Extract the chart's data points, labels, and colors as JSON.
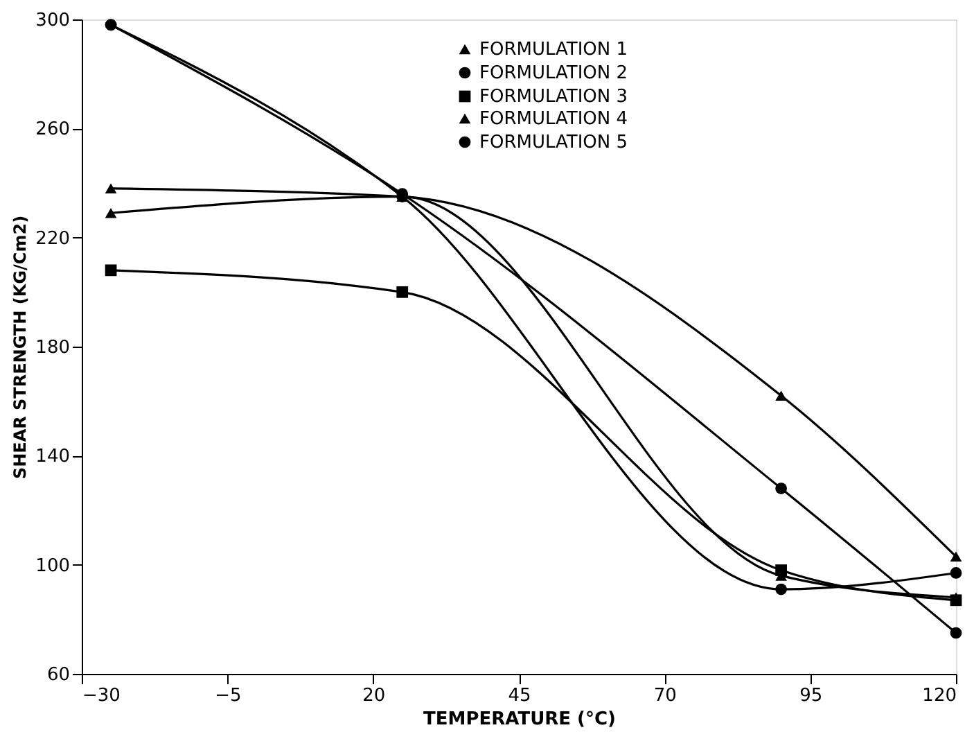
{
  "chart_data": {
    "type": "line",
    "xlabel": "TEMPERATURE (°C)",
    "ylabel": "SHEAR STRENGTH (KG/Cm2)",
    "xlim": [
      -30,
      120
    ],
    "xticks": [
      -30,
      -5,
      20,
      45,
      70,
      95,
      120
    ],
    "ylim": [
      60,
      300
    ],
    "yticks": [
      60,
      100,
      140,
      180,
      220,
      260,
      300
    ],
    "grid": false,
    "legend": "top",
    "line_style": "solid",
    "series": [
      {
        "name": "FORMULATION 1",
        "color": "#000000",
        "marker": "triangle",
        "x": [
          -25,
          25,
          90,
          120
        ],
        "values": [
          238,
          235,
          162,
          103
        ]
      },
      {
        "name": "FORMULATION 2",
        "color": "#000000",
        "marker": "circle",
        "x": [
          -25,
          25,
          90,
          120
        ],
        "values": [
          298,
          236,
          128,
          75
        ]
      },
      {
        "name": "FORMULATION 3",
        "color": "#000000",
        "marker": "square",
        "x": [
          -25,
          25,
          90,
          120
        ],
        "values": [
          208,
          200,
          98,
          87
        ]
      },
      {
        "name": "FORMULATION 4",
        "color": "#000000",
        "marker": "triangle",
        "x": [
          -25,
          25,
          90,
          120
        ],
        "values": [
          229,
          235,
          96,
          88
        ]
      },
      {
        "name": "FORMULATION 5",
        "color": "#000000",
        "marker": "circle",
        "x": [
          -25,
          25,
          90,
          120
        ],
        "values": [
          298,
          235,
          91,
          97
        ]
      }
    ]
  }
}
